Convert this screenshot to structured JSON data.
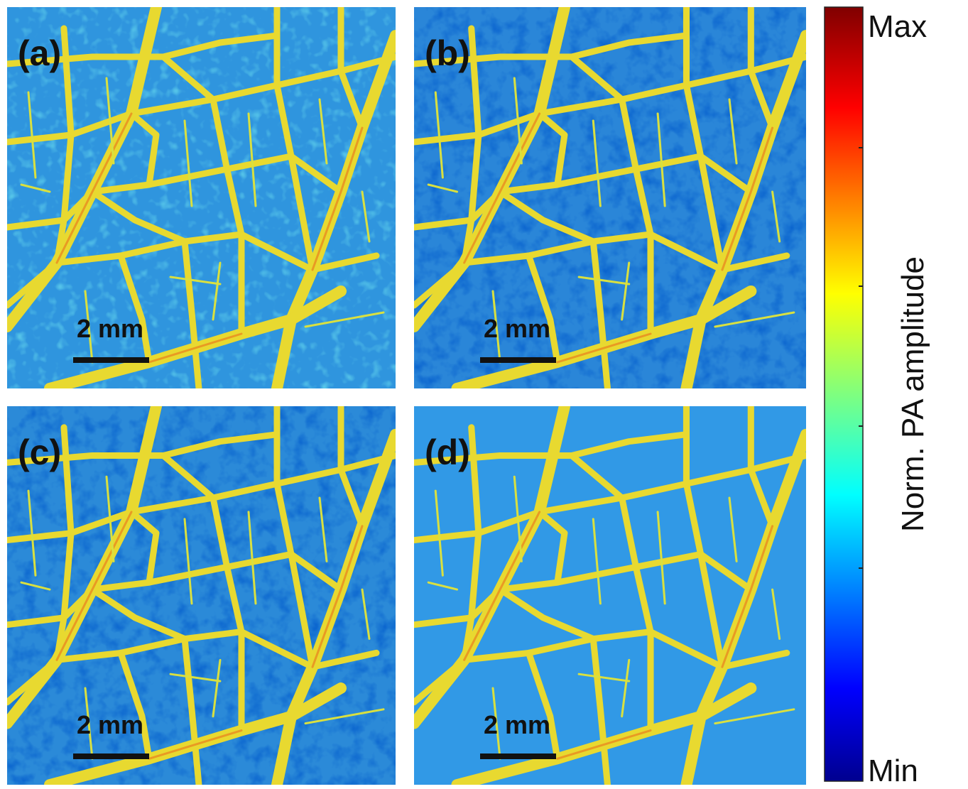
{
  "panels": [
    {
      "label": "(a)",
      "scale_bar": "2 mm"
    },
    {
      "label": "(b)",
      "scale_bar": "2 mm"
    },
    {
      "label": "(c)",
      "scale_bar": "2 mm"
    },
    {
      "label": "(d)",
      "scale_bar": "2 mm"
    }
  ],
  "colorbar": {
    "max_label": "Max",
    "min_label": "Min",
    "title": "Norm. PA amplitude"
  }
}
